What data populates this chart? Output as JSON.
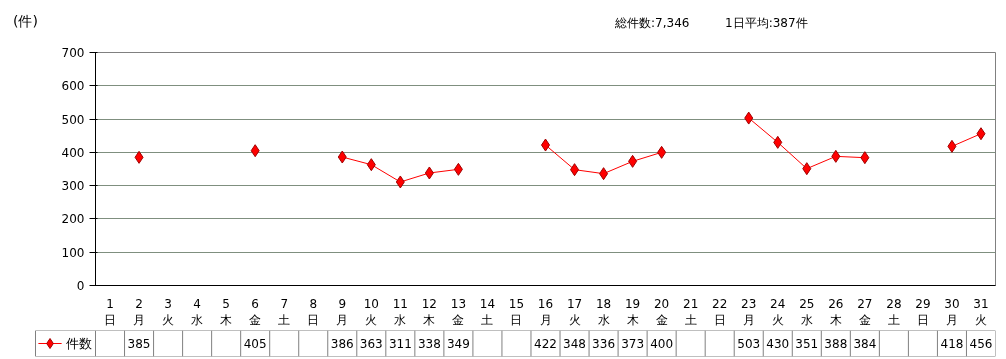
{
  "chart_data": {
    "type": "line",
    "ylabel": "(件)",
    "annotations": [
      "総件数:7,346",
      "1日平均:387件"
    ],
    "categories": [
      "1\n日",
      "2\n月",
      "3\n火",
      "4\n水",
      "5\n木",
      "6\n金",
      "7\n土",
      "8\n日",
      "9\n月",
      "10\n火",
      "11\n水",
      "12\n木",
      "13\n金",
      "14\n土",
      "15\n日",
      "16\n月",
      "17\n火",
      "18\n水",
      "19\n木",
      "20\n金",
      "21\n土",
      "22\n日",
      "23\n月",
      "24\n火",
      "25\n水",
      "26\n木",
      "27\n金",
      "28\n土",
      "29\n日",
      "30\n月",
      "31\n火"
    ],
    "series": [
      {
        "name": "件数",
        "color": "#ff0000",
        "values": [
          null,
          385,
          null,
          null,
          null,
          405,
          null,
          null,
          386,
          363,
          311,
          338,
          349,
          null,
          null,
          422,
          348,
          336,
          373,
          400,
          null,
          null,
          503,
          430,
          351,
          388,
          384,
          null,
          null,
          418,
          456
        ]
      }
    ],
    "ylim": [
      0,
      700
    ],
    "yticks": [
      0,
      100,
      200,
      300,
      400,
      500,
      600,
      700
    ],
    "grid": "y",
    "legend": "bottom",
    "marker": "diamond",
    "line_style": "solid",
    "data_labels": true
  }
}
